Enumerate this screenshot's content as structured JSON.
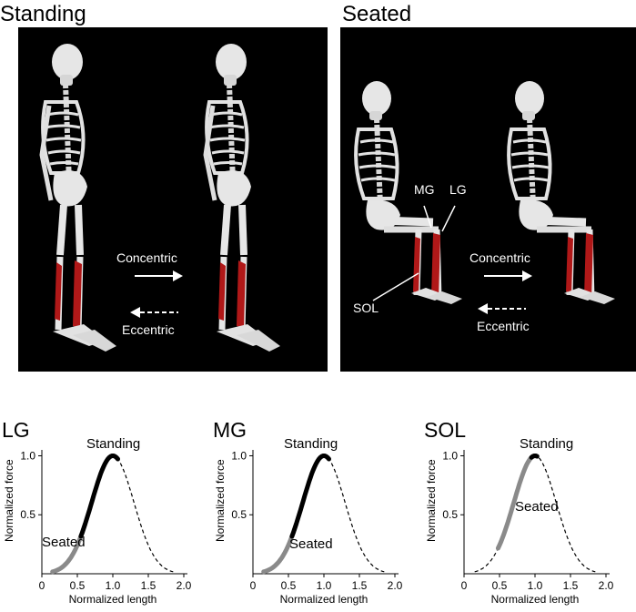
{
  "panels": {
    "standing": {
      "title": "Standing",
      "concentric": "Concentric",
      "eccentric": "Eccentric"
    },
    "seated": {
      "title": "Seated",
      "concentric": "Concentric",
      "eccentric": "Eccentric",
      "label_mg": "MG",
      "label_lg": "LG",
      "label_sol": "SOL"
    }
  },
  "colors": {
    "bone": "#e6e6e6",
    "muscle": "#b01818",
    "standing_curve": "#000000",
    "seated_curve": "#8a8a8a"
  },
  "chart_data": [
    {
      "type": "line",
      "title": "LG",
      "xlabel": "Normalized length",
      "ylabel": "Normalized force",
      "xlim": [
        0,
        2.0
      ],
      "ylim": [
        0,
        1.05
      ],
      "xticks": [
        "0",
        "0.5",
        "1.0",
        "1.5",
        "2.0"
      ],
      "yticks": [
        "0.5",
        "1.0"
      ],
      "annotations": [
        "Standing",
        "Seated"
      ],
      "curve_center": 1.0,
      "seated_range": [
        0.15,
        0.62
      ],
      "standing_range": [
        0.55,
        1.08
      ]
    },
    {
      "type": "line",
      "title": "MG",
      "xlabel": "Normalized length",
      "ylabel": "Normalized force",
      "xlim": [
        0,
        2.0
      ],
      "ylim": [
        0,
        1.05
      ],
      "xticks": [
        "0",
        "0.5",
        "1.0",
        "1.5",
        "2.0"
      ],
      "yticks": [
        "0.5",
        "1.0"
      ],
      "annotations": [
        "Standing",
        "Seated"
      ],
      "curve_center": 1.0,
      "seated_range": [
        0.15,
        0.62
      ],
      "standing_range": [
        0.55,
        1.08
      ]
    },
    {
      "type": "line",
      "title": "SOL",
      "xlabel": "Normalized length",
      "ylabel": "Normalized force",
      "xlim": [
        0,
        2.0
      ],
      "ylim": [
        0,
        1.05
      ],
      "xticks": [
        "0",
        "0.5",
        "1.0",
        "1.5",
        "2.0"
      ],
      "yticks": [
        "0.5",
        "1.0"
      ],
      "annotations": [
        "Standing",
        "Seated"
      ],
      "curve_center": 1.0,
      "seated_range": [
        0.48,
        1.02
      ],
      "standing_range": [
        0.95,
        1.03
      ]
    }
  ]
}
